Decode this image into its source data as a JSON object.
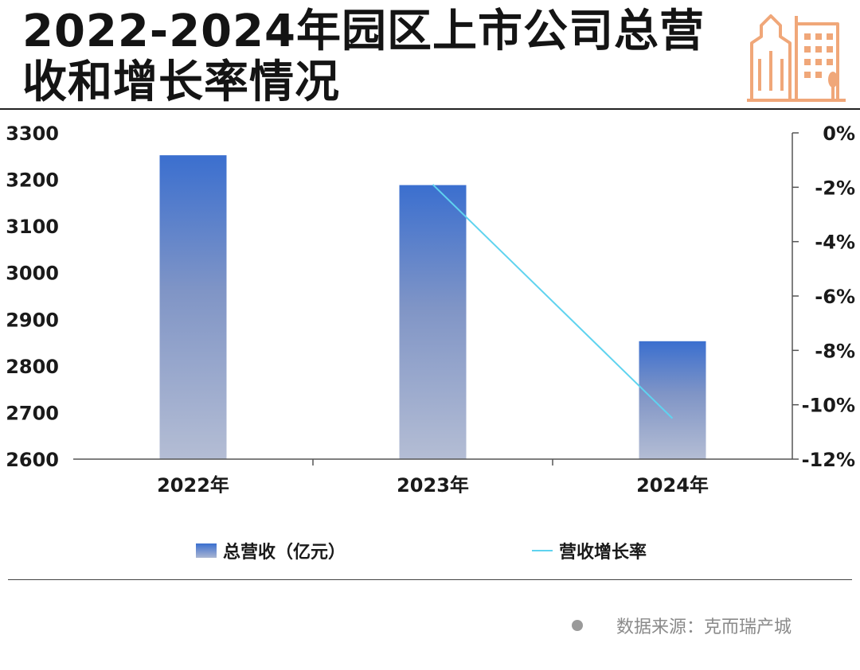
{
  "header": {
    "title_line1": "2022-2024年园区上市公司总营",
    "title_line2": "收和增长率情况",
    "icon": "city-buildings-icon",
    "icon_color": "#f0a779"
  },
  "chart_data": {
    "type": "bar",
    "categories": [
      "2022年",
      "2023年",
      "2024年"
    ],
    "series": [
      {
        "name": "总营收（亿元）",
        "type": "bar",
        "axis": "left",
        "values": [
          3252,
          3188,
          2853
        ]
      },
      {
        "name": "营收增长率",
        "type": "line",
        "axis": "right",
        "values": [
          null,
          -1.9,
          -10.5
        ]
      }
    ],
    "left_axis": {
      "ylim": [
        2600,
        3300
      ],
      "ticks": [
        "2600",
        "2700",
        "2800",
        "2900",
        "3000",
        "3100",
        "3200",
        "3300"
      ]
    },
    "right_axis": {
      "ylim": [
        -12,
        0
      ],
      "ticks": [
        "0%",
        "-2%",
        "-4%",
        "-6%",
        "-8%",
        "-10%",
        "-12%"
      ]
    },
    "legend_position": "bottom",
    "grid": false,
    "colors": {
      "bar_top": "#3b6fcf",
      "bar_bottom": "#b4bdd4",
      "line": "#5fd3ef"
    }
  },
  "legend": {
    "bar_label": "总营收（亿元）",
    "line_label": "营收增长率"
  },
  "footer": {
    "source": "数据来源：克而瑞产城"
  }
}
